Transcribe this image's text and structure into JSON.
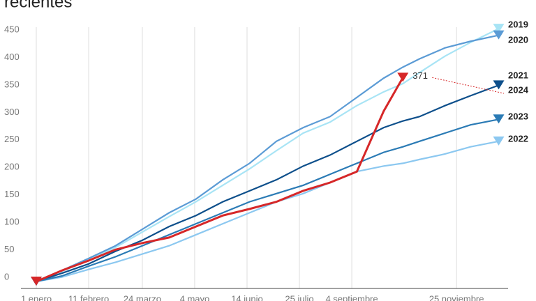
{
  "chart_data": {
    "type": "line",
    "title": "recientes",
    "x": [
      0,
      20,
      41,
      62,
      83,
      104,
      125,
      146,
      167,
      188,
      209,
      230,
      251,
      272,
      287,
      300,
      320,
      340,
      362
    ],
    "xlim": [
      0,
      365
    ],
    "xticks": [
      {
        "value": 0,
        "label": "1 enero"
      },
      {
        "value": 41,
        "label": "11 febrero"
      },
      {
        "value": 83,
        "label": "24 marzo"
      },
      {
        "value": 124,
        "label": "4 mayo"
      },
      {
        "value": 165,
        "label": "14 junio"
      },
      {
        "value": 206,
        "label": "25 julio"
      },
      {
        "value": 247,
        "label": "4 septiembre"
      },
      {
        "value": 329,
        "label": "25 noviembre"
      }
    ],
    "ylim": [
      0,
      450
    ],
    "yticks": [
      0,
      50,
      100,
      150,
      200,
      250,
      300,
      350,
      400,
      450
    ],
    "grid": true,
    "series": [
      {
        "name": "2019",
        "color": "#a8e4f5",
        "values": [
          0,
          18,
          40,
          62,
          90,
          118,
          145,
          175,
          205,
          238,
          270,
          290,
          320,
          345,
          360,
          380,
          410,
          435,
          460
        ]
      },
      {
        "name": "2020",
        "color": "#5b9bd5",
        "values": [
          0,
          20,
          42,
          65,
          95,
          125,
          150,
          185,
          215,
          255,
          280,
          300,
          335,
          370,
          390,
          405,
          425,
          437,
          448
        ]
      },
      {
        "name": "2021",
        "color": "#0d4f8b",
        "values": [
          0,
          15,
          32,
          55,
          75,
          100,
          120,
          145,
          165,
          185,
          210,
          230,
          255,
          280,
          292,
          300,
          320,
          338,
          357
        ]
      },
      {
        "name": "2022",
        "color": "#8cc8f0",
        "values": [
          0,
          8,
          22,
          35,
          50,
          65,
          85,
          105,
          125,
          145,
          160,
          180,
          200,
          210,
          215,
          222,
          232,
          245,
          255
        ]
      },
      {
        "name": "2023",
        "color": "#2b7bb5",
        "values": [
          0,
          10,
          28,
          45,
          65,
          85,
          105,
          125,
          145,
          160,
          175,
          195,
          215,
          235,
          245,
          255,
          270,
          285,
          295
        ]
      },
      {
        "name": "2024",
        "color": "#d62728",
        "values": [
          0,
          20,
          38,
          58,
          70,
          80,
          100,
          120,
          132,
          145,
          165,
          180,
          200,
          310,
          371,
          null,
          null,
          null,
          null
        ]
      }
    ]
  }
}
